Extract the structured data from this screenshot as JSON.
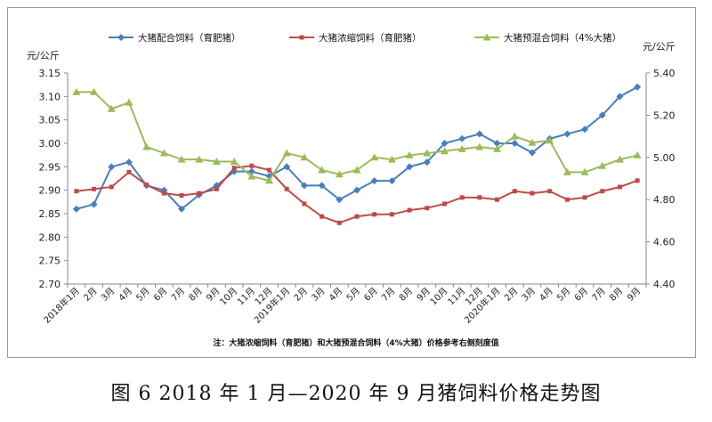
{
  "caption": "图 6   2018 年 1 月—2020 年 9 月猪饲料价格走势图",
  "chart_data": {
    "type": "line",
    "y_left_unit": "元/公斤",
    "y_right_unit": "元/公斤",
    "ylim_left": [
      2.7,
      3.15
    ],
    "yticks_left": [
      "2.70",
      "2.75",
      "2.80",
      "2.85",
      "2.90",
      "2.95",
      "3.00",
      "3.05",
      "3.10",
      "3.15"
    ],
    "ylim_right": [
      4.4,
      5.4
    ],
    "yticks_right": [
      "4.40",
      "4.60",
      "4.80",
      "5.00",
      "5.20",
      "5.40"
    ],
    "grid": false,
    "legend_position": "top",
    "note": "注：大猪浓缩饲料（育肥猪）和大猪预混合饲料（4%大猪）价格参考右侧刻度值",
    "categories": [
      "2018年1月",
      "2月",
      "3月",
      "4月",
      "5月",
      "6月",
      "7月",
      "8月",
      "9月",
      "10月",
      "11月",
      "12月",
      "2019年1月",
      "2月",
      "3月",
      "4月",
      "5月",
      "6月",
      "7月",
      "8月",
      "9月",
      "10月",
      "11月",
      "12月",
      "2020年1月",
      "2月",
      "3月",
      "4月",
      "5月",
      "6月",
      "7月",
      "8月",
      "9月"
    ],
    "series": [
      {
        "name": "大猪配合饲料（育肥猪）",
        "axis": "left",
        "color": "#4a7ebb",
        "marker": "diamond",
        "values": [
          2.86,
          2.87,
          2.95,
          2.96,
          2.91,
          2.9,
          2.86,
          2.89,
          2.91,
          2.94,
          2.94,
          2.93,
          2.95,
          2.91,
          2.91,
          2.88,
          2.9,
          2.92,
          2.92,
          2.95,
          2.96,
          3.0,
          3.01,
          3.02,
          3.0,
          3.0,
          2.98,
          3.01,
          3.02,
          3.03,
          3.06,
          3.1,
          3.12
        ]
      },
      {
        "name": "大猪浓缩饲料（育肥猪）",
        "axis": "right",
        "color": "#be4b48",
        "marker": "square",
        "values": [
          4.84,
          4.85,
          4.86,
          4.93,
          4.87,
          4.83,
          4.82,
          4.83,
          4.85,
          4.95,
          4.96,
          4.94,
          4.85,
          4.78,
          4.72,
          4.69,
          4.72,
          4.73,
          4.73,
          4.75,
          4.76,
          4.78,
          4.81,
          4.81,
          4.8,
          4.84,
          4.83,
          4.84,
          4.8,
          4.81,
          4.84,
          4.86,
          4.89
        ]
      },
      {
        "name": "大猪预混合饲料（4%大猪）",
        "axis": "right",
        "color": "#9bbb59",
        "marker": "triangle",
        "values": [
          5.31,
          5.31,
          5.23,
          5.26,
          5.05,
          5.02,
          4.99,
          4.99,
          4.98,
          4.98,
          4.91,
          4.89,
          5.02,
          5.0,
          4.94,
          4.92,
          4.94,
          5.0,
          4.99,
          5.01,
          5.02,
          5.03,
          5.04,
          5.05,
          5.04,
          5.1,
          5.07,
          5.08,
          4.93,
          4.93,
          4.96,
          4.99,
          5.01
        ]
      }
    ]
  }
}
